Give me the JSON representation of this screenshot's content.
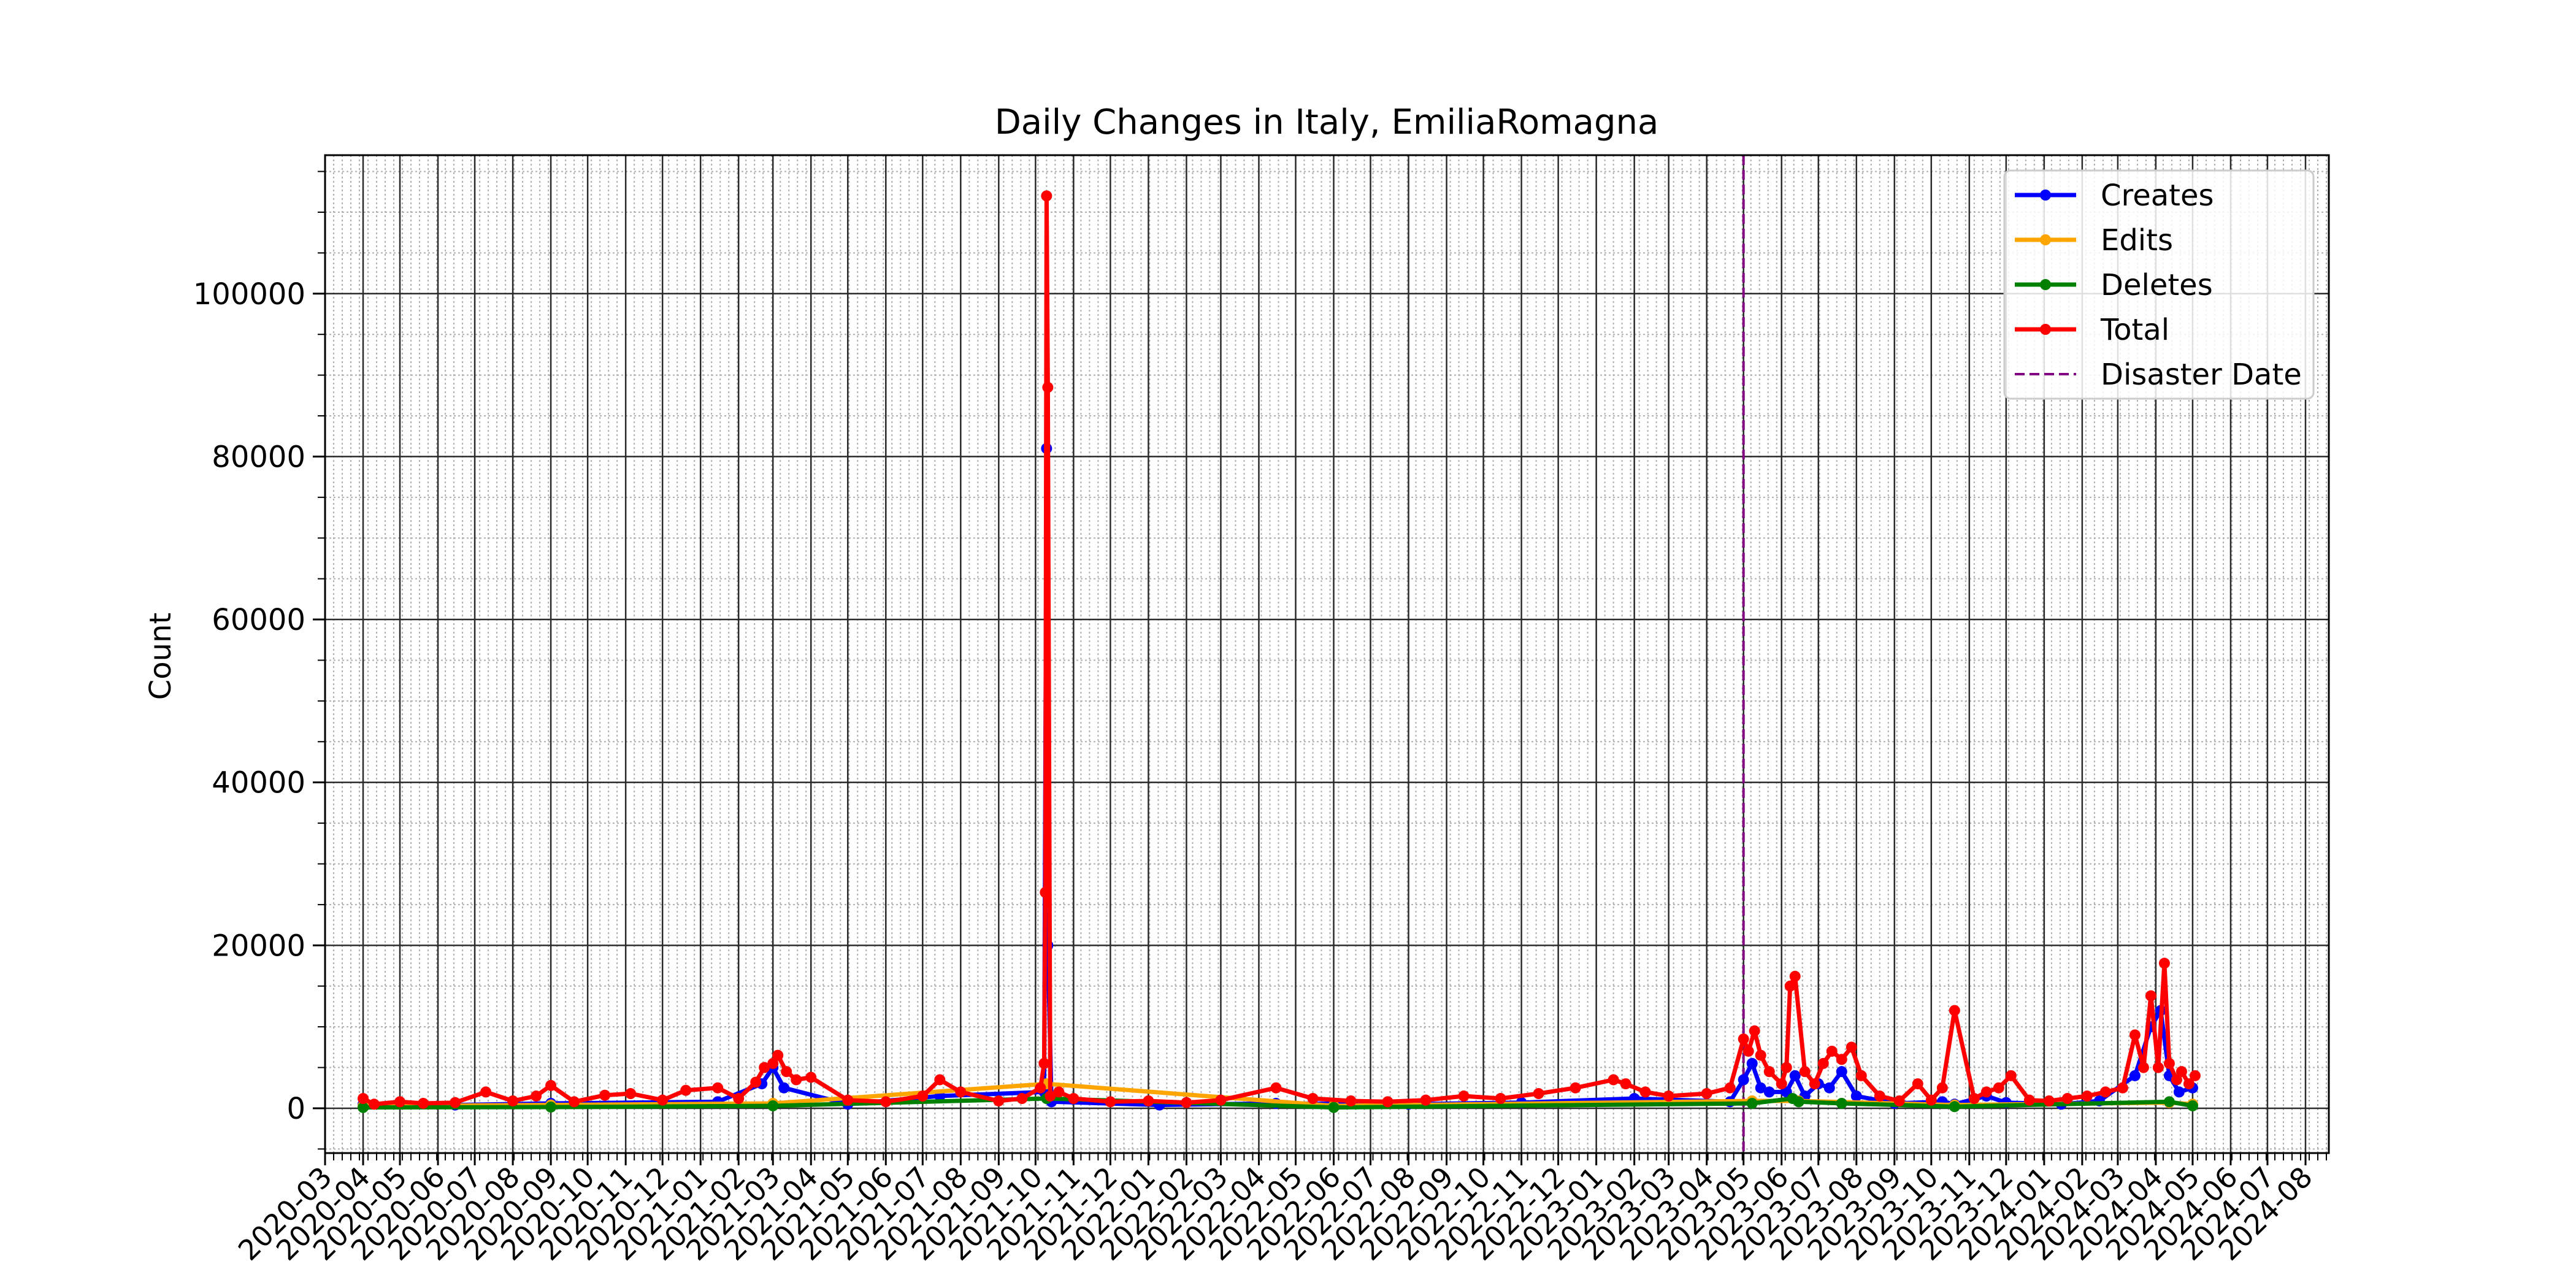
{
  "chart_data": {
    "type": "line",
    "title": "Daily Changes in Italy, EmiliaRomagna",
    "xlabel": "",
    "ylabel": "Count",
    "xlim": [
      "2020-03-01",
      "2024-08-20"
    ],
    "ylim": [
      -5500,
      117000
    ],
    "y_ticks": [
      0,
      20000,
      40000,
      60000,
      80000,
      100000
    ],
    "x_ticks": [
      "2020-03",
      "2020-04",
      "2020-05",
      "2020-06",
      "2020-07",
      "2020-08",
      "2020-09",
      "2020-10",
      "2020-11",
      "2020-12",
      "2021-01",
      "2021-02",
      "2021-03",
      "2021-04",
      "2021-05",
      "2021-06",
      "2021-07",
      "2021-08",
      "2021-09",
      "2021-10",
      "2021-11",
      "2021-12",
      "2022-01",
      "2022-02",
      "2022-03",
      "2022-04",
      "2022-05",
      "2022-06",
      "2022-07",
      "2022-08",
      "2022-09",
      "2022-10",
      "2022-11",
      "2022-12",
      "2023-01",
      "2023-02",
      "2023-03",
      "2023-04",
      "2023-05",
      "2023-06",
      "2023-07",
      "2023-08",
      "2023-09",
      "2023-10",
      "2023-11",
      "2023-12",
      "2024-01",
      "2024-02",
      "2024-03",
      "2024-04",
      "2024-05",
      "2024-06",
      "2024-07",
      "2024-08"
    ],
    "grid": true,
    "legend_position": "top-right",
    "disaster_date": "2023-05-01",
    "series": [
      {
        "name": "Creates",
        "color": "#0000ff",
        "x": [
          "2020-04-01",
          "2020-06-15",
          "2020-09-01",
          "2021-01-15",
          "2021-02-20",
          "2021-03-01",
          "2021-03-10",
          "2021-05-01",
          "2021-07-15",
          "2021-10-08",
          "2021-10-10",
          "2021-10-11",
          "2021-10-14",
          "2022-01-10",
          "2022-04-15",
          "2022-08-01",
          "2022-11-01",
          "2023-02-01",
          "2023-04-20",
          "2023-05-01",
          "2023-05-08",
          "2023-05-15",
          "2023-05-22",
          "2023-06-05",
          "2023-06-12",
          "2023-06-20",
          "2023-07-01",
          "2023-07-10",
          "2023-07-20",
          "2023-08-01",
          "2023-09-01",
          "2023-10-10",
          "2023-10-20",
          "2023-11-15",
          "2023-12-01",
          "2024-01-15",
          "2024-02-15",
          "2024-03-15",
          "2024-03-28",
          "2024-04-05",
          "2024-04-12",
          "2024-04-20",
          "2024-05-01"
        ],
        "values": [
          500,
          400,
          600,
          800,
          3000,
          5000,
          2500,
          500,
          1500,
          2000,
          81000,
          20000,
          800,
          400,
          600,
          500,
          700,
          1200,
          800,
          3500,
          5500,
          2500,
          2000,
          2000,
          4000,
          1500,
          3000,
          2500,
          4500,
          1500,
          600,
          800,
          500,
          1500,
          700,
          500,
          900,
          4000,
          10000,
          12000,
          4000,
          2000,
          2500
        ]
      },
      {
        "name": "Edits",
        "color": "#ffa500",
        "x": [
          "2020-04-01",
          "2020-09-01",
          "2021-03-01",
          "2021-10-10",
          "2022-06-01",
          "2023-05-08",
          "2023-06-15",
          "2023-10-20",
          "2024-04-12",
          "2024-05-01"
        ],
        "values": [
          300,
          400,
          600,
          3000,
          300,
          900,
          900,
          400,
          700,
          500
        ]
      },
      {
        "name": "Deletes",
        "color": "#008000",
        "x": [
          "2020-04-01",
          "2020-09-01",
          "2021-03-01",
          "2021-10-10",
          "2022-06-01",
          "2023-05-08",
          "2023-06-10",
          "2023-06-15",
          "2023-07-20",
          "2023-10-20",
          "2024-04-12",
          "2024-05-01"
        ],
        "values": [
          100,
          150,
          300,
          1200,
          100,
          600,
          1200,
          800,
          600,
          200,
          800,
          300
        ]
      },
      {
        "name": "Total",
        "color": "#ff0000",
        "x": [
          "2020-04-01",
          "2020-04-10",
          "2020-05-01",
          "2020-05-20",
          "2020-06-15",
          "2020-07-10",
          "2020-08-01",
          "2020-08-20",
          "2020-09-01",
          "2020-09-20",
          "2020-10-15",
          "2020-11-05",
          "2020-12-01",
          "2020-12-20",
          "2021-01-15",
          "2021-02-01",
          "2021-02-15",
          "2021-02-22",
          "2021-03-01",
          "2021-03-05",
          "2021-03-12",
          "2021-03-20",
          "2021-04-01",
          "2021-05-01",
          "2021-06-01",
          "2021-07-01",
          "2021-07-15",
          "2021-08-01",
          "2021-09-01",
          "2021-09-20",
          "2021-10-05",
          "2021-10-08",
          "2021-10-09",
          "2021-10-10",
          "2021-10-11",
          "2021-10-13",
          "2021-10-20",
          "2021-11-01",
          "2021-12-01",
          "2022-01-01",
          "2022-02-01",
          "2022-03-01",
          "2022-04-15",
          "2022-05-15",
          "2022-06-15",
          "2022-07-15",
          "2022-08-15",
          "2022-09-15",
          "2022-10-15",
          "2022-11-15",
          "2022-12-15",
          "2023-01-15",
          "2023-01-25",
          "2023-02-10",
          "2023-03-01",
          "2023-04-01",
          "2023-04-20",
          "2023-05-01",
          "2023-05-05",
          "2023-05-10",
          "2023-05-15",
          "2023-05-22",
          "2023-06-01",
          "2023-06-05",
          "2023-06-08",
          "2023-06-12",
          "2023-06-20",
          "2023-06-28",
          "2023-07-05",
          "2023-07-12",
          "2023-07-20",
          "2023-07-28",
          "2023-08-05",
          "2023-08-20",
          "2023-09-05",
          "2023-09-20",
          "2023-10-01",
          "2023-10-10",
          "2023-10-20",
          "2023-11-05",
          "2023-11-15",
          "2023-11-25",
          "2023-12-05",
          "2023-12-20",
          "2024-01-05",
          "2024-01-20",
          "2024-02-05",
          "2024-02-20",
          "2024-03-05",
          "2024-03-15",
          "2024-03-22",
          "2024-03-28",
          "2024-04-03",
          "2024-04-08",
          "2024-04-12",
          "2024-04-18",
          "2024-04-22",
          "2024-04-28",
          "2024-05-03"
        ],
        "values": [
          1200,
          500,
          800,
          600,
          700,
          2000,
          900,
          1500,
          2800,
          800,
          1600,
          1800,
          1000,
          2200,
          2500,
          1200,
          3200,
          5000,
          5500,
          6500,
          4500,
          3500,
          3800,
          1000,
          800,
          1500,
          3500,
          2000,
          900,
          1200,
          2500,
          5500,
          26500,
          112000,
          88500,
          1500,
          2000,
          1200,
          800,
          900,
          700,
          1000,
          2500,
          1200,
          900,
          800,
          1000,
          1500,
          1200,
          1800,
          2500,
          3500,
          3000,
          2000,
          1500,
          1800,
          2500,
          8500,
          7000,
          9500,
          6500,
          4500,
          3000,
          5000,
          15000,
          16200,
          4500,
          3000,
          5500,
          7000,
          6000,
          7500,
          4000,
          1500,
          900,
          3000,
          1000,
          2500,
          12000,
          1200,
          2000,
          2500,
          4000,
          1000,
          900,
          1200,
          1500,
          2000,
          2500,
          9000,
          5000,
          13800,
          5000,
          17800,
          5500,
          3500,
          4500,
          3000,
          4000
        ]
      }
    ]
  }
}
